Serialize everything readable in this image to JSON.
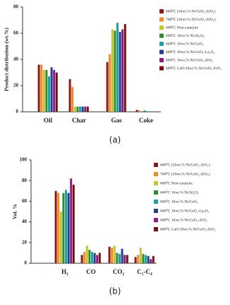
{
  "chart_data": [
    {
      "type": "bar",
      "caption": "(a)",
      "ylabel": "Product distribution (wt.%)",
      "categories": [
        "Oil",
        "Char",
        "Gas",
        "Coke"
      ],
      "ylim": [
        0,
        80
      ],
      "yticks": [
        0,
        20,
        40,
        60,
        80
      ],
      "legend": "upper right",
      "series": [
        {
          "name": "600⁰C (10wt.% Ni/CeO₂-ZrO₂)",
          "color": "#8b1a1a",
          "values": [
            36,
            25,
            38,
            1.5
          ]
        },
        {
          "name": "700⁰C (10wt.% Ni/CeO₂-ZrO₂)",
          "color": "#f08a24",
          "values": [
            36,
            19,
            44,
            1
          ]
        },
        {
          "name": "600⁰C Non-catalytic",
          "color": "#c8c232",
          "values": [
            32,
            4,
            63,
            0
          ]
        },
        {
          "name": "600⁰C 10wt.% Ni/Al₂O₃",
          "color": "#2e8b2e",
          "values": [
            32,
            4,
            62,
            1
          ]
        },
        {
          "name": "600⁰C 10wt.% Ni/CeO₂",
          "color": "#1fa3a3",
          "values": [
            27,
            4,
            68,
            0.5
          ]
        },
        {
          "name": "600⁰C 10wt.% Ni/CeO₂-La₂O₃",
          "color": "#1f3f8f",
          "values": [
            34,
            4,
            61,
            0
          ]
        },
        {
          "name": "600⁰C 10wt.% Ni/CeO₂-ZrO₂",
          "color": "#8b1a8b",
          "values": [
            32,
            4,
            63,
            0
          ]
        },
        {
          "name": "600⁰C CaO:10wt.% Ni/CeO₂-ZrO₂",
          "color": "#7a1010",
          "values": [
            30,
            4,
            67,
            0
          ]
        }
      ]
    },
    {
      "type": "bar",
      "caption": "(b)",
      "ylabel": "Vol. %",
      "categories": [
        "H₂",
        "CO",
        "CO₂",
        "C₁-C₄"
      ],
      "ylim": [
        0,
        100
      ],
      "yticks": [
        0,
        20,
        40,
        60,
        80,
        100
      ],
      "legend": "upper right",
      "series": [
        {
          "name": "600⁰C (10wt.% Ni/CeO₂-ZrO₂)",
          "color": "#8b1a1a",
          "values": [
            70,
            8,
            16,
            6
          ]
        },
        {
          "name": "700⁰C (10wt.% Ni/CeO₂-ZrO₂)",
          "color": "#f08a24",
          "values": [
            68,
            11,
            15,
            8
          ]
        },
        {
          "name": "600⁰C Non-catalytic",
          "color": "#c8c232",
          "values": [
            50,
            17,
            17,
            15
          ]
        },
        {
          "name": "600⁰C 10wt.% Ni/Al₂O₃",
          "color": "#2e8b2e",
          "values": [
            68,
            13,
            10,
            9
          ]
        },
        {
          "name": "600⁰C 10wt.% Ni/CeO₂",
          "color": "#1fa3a3",
          "values": [
            71,
            11,
            9,
            8
          ]
        },
        {
          "name": "600⁰C 10wt.% Ni/CeO₂-La₂O₃",
          "color": "#1f3f8f",
          "values": [
            68,
            10,
            14,
            7
          ]
        },
        {
          "name": "600⁰C 10wt.% Ni/CeO₂-ZrO₂",
          "color": "#8b1a8b",
          "values": [
            82,
            8,
            8,
            4
          ]
        },
        {
          "name": "600⁰C CaO:10wt.% Ni/CeO₂-ZrO₂",
          "color": "#7a1010",
          "values": [
            76,
            10,
            8,
            7
          ]
        }
      ]
    }
  ]
}
